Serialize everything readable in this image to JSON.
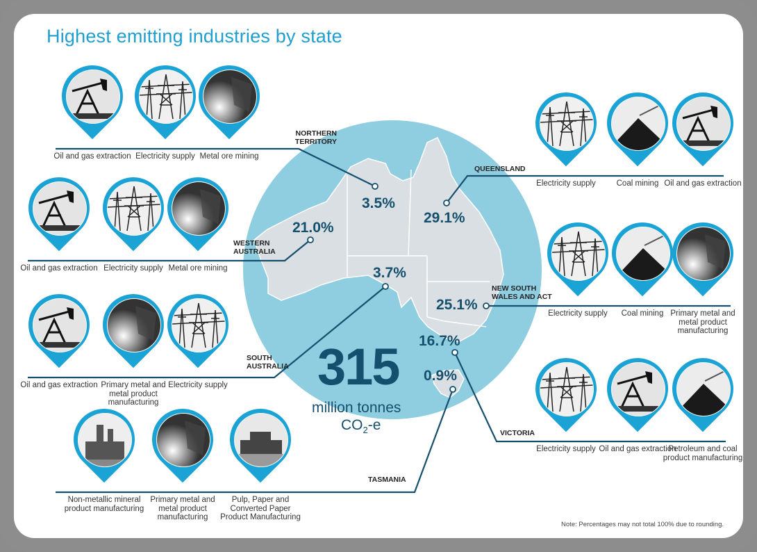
{
  "title": "Highest emitting industries by state",
  "colors": {
    "title": "#1f9fcf",
    "pin": "#1ba3d6",
    "line": "#14506e",
    "circle": "#8fcde0",
    "land": "#d9dfe2"
  },
  "total": {
    "value": "315",
    "unit": "million tonnes",
    "co2_prefix": "CO",
    "co2_sub": "2",
    "co2_suffix": "-e"
  },
  "note": "Note: Percentages may not total 100% due to rounding.",
  "states": [
    {
      "key": "nt",
      "name_lines": [
        "NORTHERN",
        "TERRITORY"
      ],
      "percent": "3.5%",
      "industries": [
        {
          "label": "Oil and gas extraction",
          "icon": "oil-pump"
        },
        {
          "label": "Electricity supply",
          "icon": "power-pylon"
        },
        {
          "label": "Metal ore mining",
          "icon": "metal"
        }
      ]
    },
    {
      "key": "wa",
      "name_lines": [
        "WESTERN",
        "AUSTRALIA"
      ],
      "percent": "21.0%",
      "industries": [
        {
          "label": "Oil and gas extraction",
          "icon": "oil-pump"
        },
        {
          "label": "Electricity supply",
          "icon": "power-pylon"
        },
        {
          "label": "Metal ore mining",
          "icon": "metal"
        }
      ]
    },
    {
      "key": "sa",
      "name_lines": [
        "SOUTH",
        "AUSTRALIA"
      ],
      "percent": "3.7%",
      "industries": [
        {
          "label": "Oil and gas extraction",
          "icon": "oil-pump"
        },
        {
          "label": "Primary metal and metal product manufacturing",
          "icon": "metal"
        },
        {
          "label": "Electricity supply",
          "icon": "power-pylon"
        }
      ]
    },
    {
      "key": "tas",
      "name_lines": [
        "TASMANIA"
      ],
      "percent": "0.9%",
      "industries": [
        {
          "label": "Non-metallic mineral product manufacturing",
          "icon": "cement-plant"
        },
        {
          "label": "Primary metal and metal product manufacturing",
          "icon": "metal"
        },
        {
          "label": "Pulp, Paper and Converted Paper Product Manufacturing",
          "icon": "paper-mill"
        }
      ]
    },
    {
      "key": "qld",
      "name_lines": [
        "QUEENSLAND"
      ],
      "percent": "29.1%",
      "industries": [
        {
          "label": "Electricity supply",
          "icon": "power-pylon"
        },
        {
          "label": "Coal mining",
          "icon": "coal-pile"
        },
        {
          "label": "Oil and gas extraction",
          "icon": "oil-pump"
        }
      ]
    },
    {
      "key": "nsw",
      "name_lines": [
        "NEW SOUTH",
        "WALES AND ACT"
      ],
      "percent": "25.1%",
      "industries": [
        {
          "label": "Electricity supply",
          "icon": "power-pylon"
        },
        {
          "label": "Coal mining",
          "icon": "coal-pile"
        },
        {
          "label": "Primary metal and metal product manufacturing",
          "icon": "metal"
        }
      ]
    },
    {
      "key": "vic",
      "name_lines": [
        "VICTORIA"
      ],
      "percent": "16.7%",
      "industries": [
        {
          "label": "Electricity supply",
          "icon": "power-pylon"
        },
        {
          "label": "Oil and gas extraction",
          "icon": "oil-pump"
        },
        {
          "label": "Petroleum and coal product manufacturing",
          "icon": "coal-pile"
        }
      ]
    }
  ]
}
